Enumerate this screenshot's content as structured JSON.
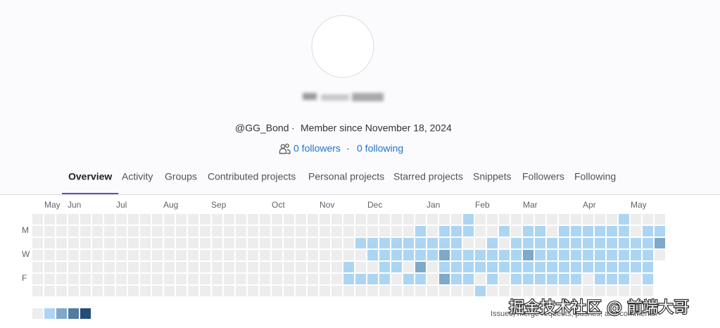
{
  "profile": {
    "handle": "@GG_Bond",
    "separator": "·",
    "member_since": "Member since November 18, 2024",
    "followers": "0 followers",
    "following": "0 following",
    "dot": "·"
  },
  "tabs": [
    "Overview",
    "Activity",
    "Groups",
    "Contributed projects",
    "Personal projects",
    "Starred projects",
    "Snippets",
    "Followers",
    "Following"
  ],
  "active_tab": 0,
  "calendar": {
    "months": [
      "May",
      "Jun",
      "Jul",
      "Aug",
      "Sep",
      "Oct",
      "Nov",
      "Dec",
      "Jan",
      "Feb",
      "Mar",
      "Apr",
      "May"
    ],
    "days": [
      "M",
      "W",
      "F"
    ],
    "level_colors": [
      "#ededed",
      "#acd5f2",
      "#7fa8c9",
      "#527ba0",
      "#254e77"
    ],
    "weeks": [
      [
        0,
        0,
        0,
        0,
        0,
        0,
        0
      ],
      [
        0,
        0,
        0,
        0,
        0,
        0,
        0
      ],
      [
        0,
        0,
        0,
        0,
        0,
        0,
        0
      ],
      [
        0,
        0,
        0,
        0,
        0,
        0,
        0
      ],
      [
        0,
        0,
        0,
        0,
        0,
        0,
        0
      ],
      [
        0,
        0,
        0,
        0,
        0,
        0,
        0
      ],
      [
        0,
        0,
        0,
        0,
        0,
        0,
        0
      ],
      [
        0,
        0,
        0,
        0,
        0,
        0,
        0
      ],
      [
        0,
        0,
        0,
        0,
        0,
        0,
        0
      ],
      [
        0,
        0,
        0,
        0,
        0,
        0,
        0
      ],
      [
        0,
        0,
        0,
        0,
        0,
        0,
        0
      ],
      [
        0,
        0,
        0,
        0,
        0,
        0,
        0
      ],
      [
        0,
        0,
        0,
        0,
        0,
        0,
        0
      ],
      [
        0,
        0,
        0,
        0,
        0,
        0,
        0
      ],
      [
        0,
        0,
        0,
        0,
        0,
        0,
        0
      ],
      [
        0,
        0,
        0,
        0,
        0,
        0,
        0
      ],
      [
        0,
        0,
        0,
        0,
        0,
        0,
        0
      ],
      [
        0,
        0,
        0,
        0,
        0,
        0,
        0
      ],
      [
        0,
        0,
        0,
        0,
        0,
        0,
        0
      ],
      [
        0,
        0,
        0,
        0,
        0,
        0,
        0
      ],
      [
        0,
        0,
        0,
        0,
        0,
        0,
        0
      ],
      [
        0,
        0,
        0,
        0,
        0,
        0,
        0
      ],
      [
        0,
        0,
        0,
        0,
        0,
        0,
        0
      ],
      [
        0,
        0,
        0,
        0,
        0,
        0,
        0
      ],
      [
        0,
        0,
        0,
        0,
        0,
        0,
        0
      ],
      [
        0,
        0,
        0,
        0,
        0,
        0,
        0
      ],
      [
        0,
        0,
        0,
        0,
        1,
        1,
        0
      ],
      [
        0,
        0,
        1,
        0,
        0,
        1,
        0
      ],
      [
        0,
        0,
        1,
        1,
        0,
        1,
        0
      ],
      [
        0,
        0,
        1,
        1,
        1,
        1,
        0
      ],
      [
        0,
        0,
        1,
        1,
        1,
        0,
        0
      ],
      [
        0,
        0,
        1,
        1,
        0,
        1,
        0
      ],
      [
        0,
        1,
        1,
        1,
        2,
        1,
        0
      ],
      [
        0,
        0,
        1,
        1,
        0,
        0,
        0
      ],
      [
        0,
        1,
        1,
        2,
        1,
        2,
        0
      ],
      [
        0,
        1,
        1,
        1,
        1,
        1,
        0
      ],
      [
        1,
        1,
        0,
        1,
        1,
        1,
        0
      ],
      [
        0,
        0,
        0,
        1,
        1,
        0,
        1
      ],
      [
        0,
        0,
        1,
        1,
        1,
        1,
        0
      ],
      [
        0,
        1,
        0,
        1,
        1,
        0,
        0
      ],
      [
        0,
        0,
        1,
        1,
        1,
        1,
        0
      ],
      [
        0,
        1,
        1,
        2,
        1,
        1,
        0
      ],
      [
        0,
        1,
        1,
        1,
        1,
        1,
        0
      ],
      [
        0,
        0,
        1,
        1,
        1,
        1,
        0
      ],
      [
        0,
        1,
        1,
        1,
        1,
        1,
        0
      ],
      [
        0,
        1,
        1,
        1,
        1,
        1,
        0
      ],
      [
        0,
        1,
        1,
        1,
        1,
        0,
        0
      ],
      [
        0,
        1,
        1,
        1,
        1,
        1,
        0
      ],
      [
        0,
        1,
        1,
        1,
        1,
        1,
        0
      ],
      [
        1,
        1,
        1,
        1,
        1,
        1,
        0
      ],
      [
        0,
        0,
        1,
        1,
        1,
        0,
        0
      ],
      [
        0,
        1,
        1,
        1,
        1,
        1,
        0
      ],
      [
        0,
        1,
        2,
        0
      ]
    ],
    "legend_note": "Issues, merge requests, pushes, and comments."
  },
  "watermark": "掘金技术社区 @ 前端大哥"
}
